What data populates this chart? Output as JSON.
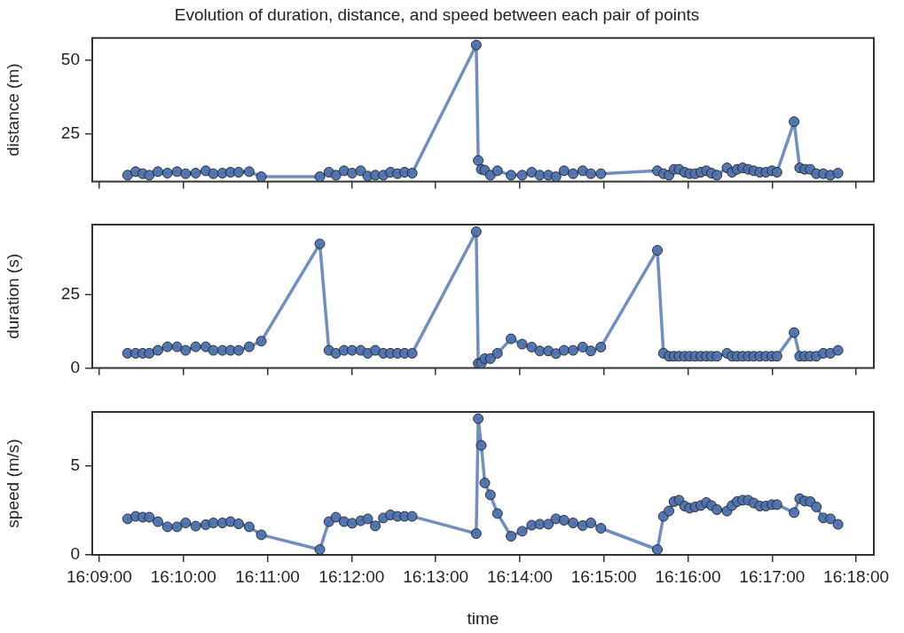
{
  "chart_data": [
    {
      "type": "line",
      "title": "Evolution of duration, distance, and speed between each pair of points",
      "ylabel": "distance (m)",
      "marker": "circle",
      "grid": false,
      "legend": false,
      "tick_labels": "y",
      "xlim": [
        16.1486,
        16.3035
      ],
      "ylim": [
        8.6,
        57.5
      ],
      "yticks": [
        25,
        50
      ],
      "xticks": [
        {
          "value": 16.15,
          "label": null
        },
        {
          "value": 16.166667,
          "label": null
        },
        {
          "value": 16.183333,
          "label": null
        },
        {
          "value": 16.2,
          "label": null
        },
        {
          "value": 16.216667,
          "label": null
        },
        {
          "value": 16.233333,
          "label": null
        },
        {
          "value": 16.25,
          "label": null
        },
        {
          "value": 16.266667,
          "label": null
        },
        {
          "value": 16.283333,
          "label": null
        },
        {
          "value": 16.3,
          "label": null
        }
      ],
      "x": [
        16.1556,
        16.1572,
        16.1586,
        16.1599,
        16.1616,
        16.1635,
        16.1654,
        16.1671,
        16.1691,
        16.1711,
        16.1726,
        16.1744,
        16.176,
        16.1776,
        16.1797,
        16.1821,
        16.1937,
        16.1955,
        16.1969,
        16.1985,
        16.2001,
        16.2018,
        16.2032,
        16.2047,
        16.2063,
        16.2077,
        16.2091,
        16.2105,
        16.212,
        16.2247,
        16.2251,
        16.2257,
        16.2264,
        16.2275,
        16.2289,
        16.2316,
        16.2338,
        16.2357,
        16.2373,
        16.239,
        16.2405,
        16.2421,
        16.2439,
        16.2458,
        16.2474,
        16.2494,
        16.2606,
        16.2618,
        16.2629,
        16.2639,
        16.2649,
        16.266,
        16.267,
        16.2681,
        16.2692,
        16.2703,
        16.2713,
        16.2724,
        16.2744,
        16.2754,
        16.2764,
        16.2775,
        16.2786,
        16.2797,
        16.2809,
        16.2821,
        16.2833,
        16.2843,
        16.2877,
        16.2888,
        16.2898,
        16.2909,
        16.2921,
        16.2935,
        16.2949,
        16.2964
      ],
      "series": [
        {
          "color": "#4c72b0",
          "values": [
            10.8,
            12.0,
            11.3,
            10.8,
            12.0,
            11.5,
            12.0,
            11.3,
            11.5,
            12.3,
            11.3,
            11.5,
            11.8,
            11.8,
            12.0,
            10.3,
            10.3,
            11.8,
            10.8,
            12.3,
            11.5,
            12.3,
            10.5,
            10.8,
            10.8,
            11.8,
            11.3,
            11.8,
            11.5,
            55.1,
            15.8,
            12.8,
            12.5,
            10.8,
            12.3,
            10.8,
            10.8,
            11.8,
            10.8,
            10.8,
            10.3,
            12.3,
            11.3,
            12.3,
            11.3,
            11.3,
            12.3,
            11.3,
            10.8,
            12.8,
            12.8,
            11.8,
            11.3,
            11.3,
            11.8,
            12.3,
            11.5,
            10.8,
            13.3,
            11.8,
            12.8,
            13.3,
            12.8,
            12.3,
            11.8,
            11.8,
            12.3,
            11.8,
            29.0,
            13.3,
            12.8,
            12.8,
            11.3,
            11.3,
            10.8,
            11.5
          ]
        }
      ]
    },
    {
      "type": "line",
      "ylabel": "duration (s)",
      "marker": "circle",
      "grid": false,
      "legend": false,
      "tick_labels": "y",
      "xlim": [
        16.1486,
        16.3035
      ],
      "ylim": [
        0,
        48.5
      ],
      "yticks": [
        0,
        25
      ],
      "xticks": [
        {
          "value": 16.15,
          "label": null
        },
        {
          "value": 16.166667,
          "label": null
        },
        {
          "value": 16.183333,
          "label": null
        },
        {
          "value": 16.2,
          "label": null
        },
        {
          "value": 16.216667,
          "label": null
        },
        {
          "value": 16.233333,
          "label": null
        },
        {
          "value": 16.25,
          "label": null
        },
        {
          "value": 16.266667,
          "label": null
        },
        {
          "value": 16.283333,
          "label": null
        },
        {
          "value": 16.3,
          "label": null
        }
      ],
      "x": [
        16.1556,
        16.1572,
        16.1586,
        16.1599,
        16.1616,
        16.1635,
        16.1654,
        16.1671,
        16.1691,
        16.1711,
        16.1726,
        16.1744,
        16.176,
        16.1776,
        16.1797,
        16.1821,
        16.1937,
        16.1955,
        16.1969,
        16.1985,
        16.2001,
        16.2018,
        16.2032,
        16.2047,
        16.2063,
        16.2077,
        16.2091,
        16.2105,
        16.212,
        16.2247,
        16.2251,
        16.2257,
        16.2264,
        16.2275,
        16.2289,
        16.2316,
        16.2338,
        16.2357,
        16.2373,
        16.239,
        16.2405,
        16.2421,
        16.2439,
        16.2458,
        16.2474,
        16.2494,
        16.2606,
        16.2618,
        16.2629,
        16.2639,
        16.2649,
        16.266,
        16.267,
        16.2681,
        16.2692,
        16.2703,
        16.2713,
        16.2724,
        16.2744,
        16.2754,
        16.2764,
        16.2775,
        16.2786,
        16.2797,
        16.2809,
        16.2821,
        16.2833,
        16.2843,
        16.2877,
        16.2888,
        16.2898,
        16.2909,
        16.2921,
        16.2935,
        16.2949,
        16.2964
      ],
      "series": [
        {
          "color": "#4c72b0",
          "values": [
            5,
            5,
            5,
            5,
            6,
            7.2,
            7.2,
            6,
            7.2,
            7.2,
            6,
            6,
            6,
            6,
            7.2,
            9.1,
            42,
            6,
            5,
            6,
            6,
            6,
            5,
            6,
            5,
            5,
            5,
            5,
            5,
            46.1,
            1.6,
            1.6,
            3.2,
            3.2,
            5,
            9.9,
            8.1,
            7.1,
            5.8,
            5.8,
            4.9,
            6,
            6,
            7.1,
            5.8,
            7.1,
            39.8,
            5,
            4,
            4,
            4,
            4,
            4,
            4,
            4,
            4,
            4,
            4,
            5,
            4,
            4,
            4,
            4,
            4,
            4,
            4,
            4,
            4,
            12,
            4,
            4,
            4,
            4,
            5,
            5,
            6
          ]
        }
      ]
    },
    {
      "type": "line",
      "xlabel": "time",
      "ylabel": "speed (m/s)",
      "marker": "circle",
      "grid": false,
      "legend": false,
      "xlim": [
        16.1486,
        16.3035
      ],
      "ylim": [
        0,
        8.05
      ],
      "yticks": [
        0,
        5
      ],
      "xticks": [
        {
          "value": 16.15,
          "label": "16:09:00"
        },
        {
          "value": 16.166667,
          "label": "16:10:00"
        },
        {
          "value": 16.183333,
          "label": "16:11:00"
        },
        {
          "value": 16.2,
          "label": "16:12:00"
        },
        {
          "value": 16.216667,
          "label": "16:13:00"
        },
        {
          "value": 16.233333,
          "label": "16:14:00"
        },
        {
          "value": 16.25,
          "label": "16:15:00"
        },
        {
          "value": 16.266667,
          "label": "16:16:00"
        },
        {
          "value": 16.283333,
          "label": "16:17:00"
        },
        {
          "value": 16.3,
          "label": "16:18:00"
        }
      ],
      "x": [
        16.1556,
        16.1572,
        16.1586,
        16.1599,
        16.1616,
        16.1635,
        16.1654,
        16.1671,
        16.1691,
        16.1711,
        16.1726,
        16.1744,
        16.176,
        16.1776,
        16.1797,
        16.1821,
        16.1937,
        16.1955,
        16.1969,
        16.1985,
        16.2001,
        16.2018,
        16.2032,
        16.2047,
        16.2063,
        16.2077,
        16.2091,
        16.2105,
        16.212,
        16.2247,
        16.2251,
        16.2257,
        16.2264,
        16.2275,
        16.2289,
        16.2316,
        16.2338,
        16.2357,
        16.2373,
        16.239,
        16.2405,
        16.2421,
        16.2439,
        16.2458,
        16.2474,
        16.2494,
        16.2606,
        16.2618,
        16.2629,
        16.2639,
        16.2649,
        16.266,
        16.267,
        16.2681,
        16.2692,
        16.2703,
        16.2713,
        16.2724,
        16.2744,
        16.2754,
        16.2764,
        16.2775,
        16.2786,
        16.2797,
        16.2809,
        16.2821,
        16.2833,
        16.2843,
        16.2877,
        16.2888,
        16.2898,
        16.2909,
        16.2921,
        16.2935,
        16.2949,
        16.2964
      ],
      "series": [
        {
          "color": "#4c72b0",
          "values": [
            2.03,
            2.17,
            2.12,
            2.12,
            1.87,
            1.58,
            1.58,
            1.8,
            1.62,
            1.7,
            1.8,
            1.8,
            1.87,
            1.75,
            1.58,
            1.13,
            0.3,
            1.87,
            2.12,
            1.87,
            1.78,
            1.92,
            2.03,
            1.63,
            2.08,
            2.25,
            2.17,
            2.17,
            2.17,
            1.2,
            7.67,
            6.17,
            4.05,
            3.38,
            2.33,
            1.05,
            1.33,
            1.67,
            1.73,
            1.73,
            2.03,
            1.95,
            1.8,
            1.65,
            1.8,
            1.5,
            0.3,
            2.17,
            2.47,
            3.0,
            3.08,
            2.75,
            2.63,
            2.7,
            2.78,
            2.95,
            2.78,
            2.55,
            2.47,
            2.78,
            3.0,
            3.08,
            3.08,
            2.92,
            2.75,
            2.75,
            2.83,
            2.83,
            2.38,
            3.17,
            3.03,
            3.0,
            2.7,
            2.08,
            2.03,
            1.72
          ]
        }
      ]
    }
  ]
}
